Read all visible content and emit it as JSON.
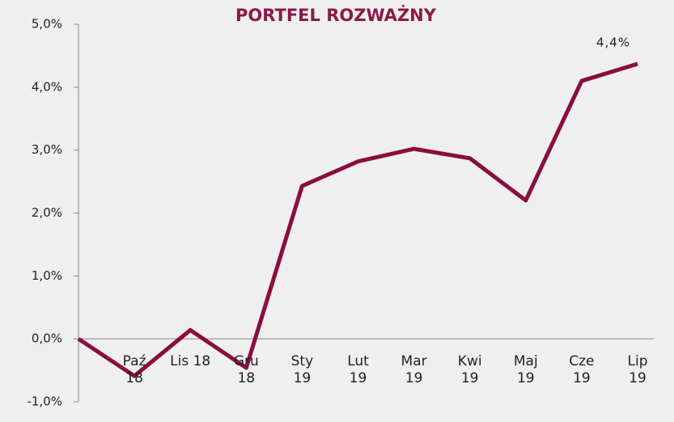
{
  "chart_data": {
    "type": "line",
    "title": "PORTFEL ROZWAŻNY",
    "categories": [
      null,
      "Paź 18",
      "Lis 18",
      "Gru 18",
      "Sty 19",
      "Lut 19",
      "Mar 19",
      "Kwi 19",
      "Maj 19",
      "Cze 19",
      "Lip 19"
    ],
    "series": [
      {
        "color": "#8b0d3f",
        "values": [
          0,
          -0.59,
          0.14,
          -0.46,
          2.43,
          2.82,
          3.02,
          2.87,
          2.2,
          4.1,
          4.37
        ],
        "value_labels": [
          null,
          null,
          null,
          null,
          null,
          null,
          null,
          null,
          null,
          null,
          "4,4%"
        ]
      }
    ],
    "ylim": [
      -1,
      5
    ],
    "yticks": [
      {
        "value": -1,
        "label": "-1,0%"
      },
      {
        "value": 0,
        "label": "0,0%"
      },
      {
        "value": 1,
        "label": "1,0%"
      },
      {
        "value": 2,
        "label": "2,0%"
      },
      {
        "value": 3,
        "label": "3,0%"
      },
      {
        "value": 4,
        "label": "4,0%"
      },
      {
        "value": 5,
        "label": "5,0%"
      }
    ]
  }
}
